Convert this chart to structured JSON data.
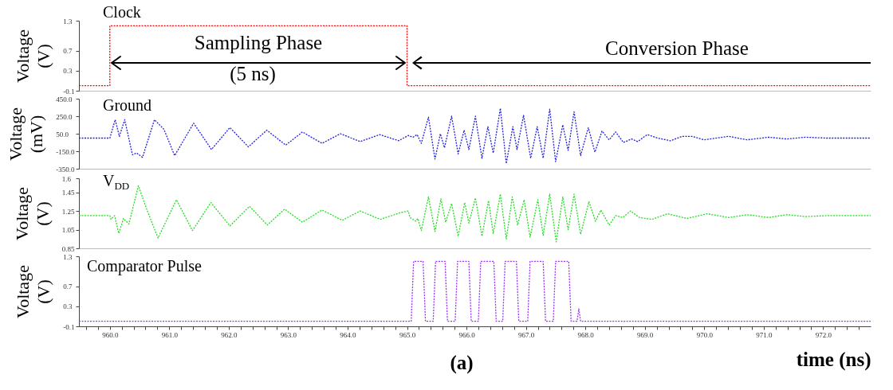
{
  "chart_data": [
    {
      "type": "line",
      "ylabel": "Voltage (V)",
      "xlim": [
        959.48,
        972.8
      ],
      "ylim": [
        -0.1,
        1.3
      ],
      "yticks": [
        -0.1,
        0.3,
        0.7,
        1.3
      ],
      "tick_labels": "y",
      "line_style": "dotted",
      "legend": false,
      "series": [
        {
          "name": "Clock",
          "color": "#ff0000",
          "x": [
            959.48,
            960.0,
            960.0,
            965.0,
            965.0,
            972.8
          ],
          "values": [
            0,
            0,
            1.2,
            1.2,
            0,
            0
          ]
        }
      ],
      "annotations": [
        "Sampling Phase",
        "(5 ns)",
        "Conversion Phase"
      ]
    },
    {
      "type": "line",
      "ylabel": "Voltage (mV)",
      "xlim": [
        959.48,
        972.8
      ],
      "ylim": [
        -350,
        450
      ],
      "yticks": [
        {
          "value": -350,
          "label": "-350.0"
        },
        {
          "value": -150,
          "label": "-150.0"
        },
        {
          "value": 50,
          "label": "50.0"
        },
        {
          "value": 250,
          "label": "250.0"
        },
        {
          "value": 450,
          "label": "450.0"
        }
      ],
      "tick_labels": "y",
      "line_style": "dotted",
      "legend": false,
      "series": [
        {
          "name": "Ground",
          "color": "#1f1fe0",
          "x": [
            959.48,
            960.0,
            960.09,
            960.16,
            960.25,
            960.38,
            960.45,
            960.55,
            960.75,
            960.91,
            961.09,
            961.41,
            961.71,
            962.02,
            962.33,
            962.64,
            962.96,
            963.24,
            963.57,
            963.88,
            964.21,
            964.54,
            964.86,
            965.02,
            965.1,
            965.17,
            965.24,
            965.36,
            965.47,
            965.56,
            965.63,
            965.75,
            965.86,
            965.96,
            966.04,
            966.15,
            966.26,
            966.36,
            966.45,
            966.57,
            966.67,
            966.78,
            966.85,
            966.96,
            967.08,
            967.19,
            967.29,
            967.4,
            967.5,
            967.62,
            967.71,
            967.81,
            967.92,
            968.05,
            968.16,
            968.28,
            968.4,
            968.51,
            968.64,
            968.78,
            968.88,
            969.04,
            969.22,
            969.43,
            969.63,
            969.79,
            970.0,
            970.41,
            970.72,
            971.08,
            971.39,
            971.7,
            972.06,
            972.8
          ],
          "values": [
            0,
            0,
            210,
            20,
            210,
            -190,
            -170,
            -220,
            210,
            100,
            -200,
            170,
            -130,
            120,
            -100,
            90,
            -80,
            70,
            -60,
            50,
            -40,
            40,
            -30,
            30,
            10,
            40,
            -60,
            240,
            -240,
            50,
            -110,
            250,
            -180,
            90,
            -130,
            250,
            -230,
            130,
            -170,
            340,
            -290,
            130,
            -130,
            260,
            -230,
            130,
            -230,
            330,
            -270,
            150,
            -140,
            300,
            -200,
            120,
            -160,
            80,
            -20,
            70,
            -50,
            -10,
            -40,
            40,
            0,
            -30,
            20,
            20,
            -20,
            20,
            -20,
            10,
            -10,
            10,
            0,
            0
          ]
        }
      ]
    },
    {
      "type": "line",
      "ylabel": "Voltage (V)",
      "xlim": [
        959.48,
        972.8
      ],
      "ylim": [
        0.85,
        1.6
      ],
      "yticks": [
        0.85,
        1.05,
        1.25,
        1.45,
        1.6
      ],
      "tick_labels": "y",
      "line_style": "dotted",
      "legend": false,
      "series": [
        {
          "name": "V$_{DD}$",
          "color": "#22dd22",
          "x": [
            959.48,
            960.0,
            960.02,
            960.08,
            960.15,
            960.23,
            960.32,
            960.48,
            960.62,
            960.81,
            961.12,
            961.39,
            961.7,
            962.02,
            962.35,
            962.65,
            962.94,
            963.24,
            963.57,
            963.91,
            964.21,
            964.55,
            964.88,
            965.02,
            965.05,
            965.15,
            965.18,
            965.24,
            965.36,
            965.47,
            965.57,
            965.65,
            965.75,
            965.86,
            965.97,
            966.04,
            966.15,
            966.26,
            966.37,
            966.45,
            966.57,
            966.67,
            966.77,
            966.86,
            966.97,
            967.07,
            967.2,
            967.29,
            967.4,
            967.51,
            967.62,
            967.71,
            967.81,
            967.92,
            968.06,
            968.17,
            968.26,
            968.4,
            968.51,
            968.63,
            968.76,
            968.91,
            969.12,
            969.38,
            969.71,
            970.05,
            970.41,
            970.72,
            971.08,
            971.39,
            971.7,
            972.06,
            972.8
          ],
          "values": [
            1.2,
            1.2,
            1.16,
            1.2,
            1.01,
            1.17,
            1.11,
            1.52,
            1.27,
            0.96,
            1.37,
            1.04,
            1.34,
            1.09,
            1.3,
            1.1,
            1.27,
            1.13,
            1.26,
            1.15,
            1.25,
            1.16,
            1.23,
            1.25,
            1.18,
            1.14,
            1.17,
            1.04,
            1.4,
            1.03,
            1.38,
            1.13,
            1.33,
            0.98,
            1.34,
            1.12,
            1.39,
            0.98,
            1.36,
            1.01,
            1.43,
            0.95,
            1.4,
            1.1,
            1.37,
            0.97,
            1.37,
            0.99,
            1.43,
            0.92,
            1.4,
            1.05,
            1.43,
            1.0,
            1.35,
            1.14,
            1.26,
            1.1,
            1.2,
            1.18,
            1.25,
            1.18,
            1.16,
            1.22,
            1.17,
            1.22,
            1.18,
            1.21,
            1.18,
            1.21,
            1.19,
            1.2,
            1.2
          ]
        }
      ]
    },
    {
      "type": "line",
      "ylabel": "Voltage (V)",
      "xlabel": "time (ns)",
      "xlim": [
        959.48,
        972.8
      ],
      "ylim": [
        -0.1,
        1.3
      ],
      "yticks": [
        -0.1,
        0.3,
        0.7,
        1.3
      ],
      "line_style": "dotted",
      "legend": false,
      "xticks": [
        {
          "value": 959.6,
          "label": null
        },
        {
          "value": 959.8,
          "label": null
        },
        {
          "value": 960,
          "label": "960.0"
        },
        {
          "value": 960.2,
          "label": null
        },
        {
          "value": 960.4,
          "label": null
        },
        {
          "value": 960.6,
          "label": null
        },
        {
          "value": 960.8,
          "label": null
        },
        {
          "value": 961,
          "label": "961.0"
        },
        {
          "value": 961.2,
          "label": null
        },
        {
          "value": 961.4,
          "label": null
        },
        {
          "value": 961.6,
          "label": null
        },
        {
          "value": 961.8,
          "label": null
        },
        {
          "value": 962,
          "label": "962.0"
        },
        {
          "value": 962.2,
          "label": null
        },
        {
          "value": 962.4,
          "label": null
        },
        {
          "value": 962.6,
          "label": null
        },
        {
          "value": 962.8,
          "label": null
        },
        {
          "value": 963,
          "label": "963.0"
        },
        {
          "value": 963.2,
          "label": null
        },
        {
          "value": 963.4,
          "label": null
        },
        {
          "value": 963.6,
          "label": null
        },
        {
          "value": 963.8,
          "label": null
        },
        {
          "value": 964,
          "label": "964.0"
        },
        {
          "value": 964.2,
          "label": null
        },
        {
          "value": 964.4,
          "label": null
        },
        {
          "value": 964.6,
          "label": null
        },
        {
          "value": 964.8,
          "label": null
        },
        {
          "value": 965,
          "label": "965.0"
        },
        {
          "value": 965.2,
          "label": null
        },
        {
          "value": 965.4,
          "label": null
        },
        {
          "value": 965.6,
          "label": null
        },
        {
          "value": 965.8,
          "label": null
        },
        {
          "value": 966,
          "label": "966.0"
        },
        {
          "value": 966.2,
          "label": null
        },
        {
          "value": 966.4,
          "label": null
        },
        {
          "value": 966.6,
          "label": null
        },
        {
          "value": 966.8,
          "label": null
        },
        {
          "value": 967,
          "label": "967.0"
        },
        {
          "value": 967.2,
          "label": null
        },
        {
          "value": 967.4,
          "label": null
        },
        {
          "value": 967.6,
          "label": null
        },
        {
          "value": 967.8,
          "label": null
        },
        {
          "value": 968,
          "label": "968.0"
        },
        {
          "value": 968.2,
          "label": null
        },
        {
          "value": 968.4,
          "label": null
        },
        {
          "value": 968.6,
          "label": null
        },
        {
          "value": 968.8,
          "label": null
        },
        {
          "value": 969,
          "label": "969.0"
        },
        {
          "value": 969.2,
          "label": null
        },
        {
          "value": 969.4,
          "label": null
        },
        {
          "value": 969.6,
          "label": null
        },
        {
          "value": 969.8,
          "label": null
        },
        {
          "value": 970,
          "label": "970.0"
        },
        {
          "value": 970.2,
          "label": null
        },
        {
          "value": 970.4,
          "label": null
        },
        {
          "value": 970.6,
          "label": null
        },
        {
          "value": 970.8,
          "label": null
        },
        {
          "value": 971,
          "label": "971.0"
        },
        {
          "value": 971.2,
          "label": null
        },
        {
          "value": 971.4,
          "label": null
        },
        {
          "value": 971.6,
          "label": null
        },
        {
          "value": 971.8,
          "label": null
        },
        {
          "value": 972,
          "label": "972.0"
        },
        {
          "value": 972.2,
          "label": null
        },
        {
          "value": 972.4,
          "label": null
        },
        {
          "value": 972.6,
          "label": null
        }
      ],
      "series": [
        {
          "name": "Comparator Pulse",
          "color": "#9b30ff",
          "x": [
            959.48,
            965.07,
            965.11,
            965.27,
            965.31,
            965.44,
            965.48,
            965.64,
            965.68,
            965.81,
            965.85,
            966.04,
            966.08,
            966.2,
            966.24,
            966.46,
            966.5,
            966.61,
            966.65,
            966.84,
            966.88,
            967.03,
            967.07,
            967.29,
            967.33,
            967.46,
            967.5,
            967.72,
            967.76,
            967.86,
            967.89,
            967.92,
            972.8
          ],
          "values": [
            0,
            0,
            1.2,
            1.2,
            0,
            0,
            1.2,
            1.2,
            0,
            0,
            1.2,
            1.2,
            0,
            0,
            1.2,
            1.2,
            0,
            0,
            1.2,
            1.2,
            0,
            0,
            1.2,
            1.2,
            0,
            0,
            1.2,
            1.2,
            0,
            0,
            0.25,
            0,
            0
          ]
        }
      ],
      "annotations": [
        "(a)"
      ]
    }
  ]
}
